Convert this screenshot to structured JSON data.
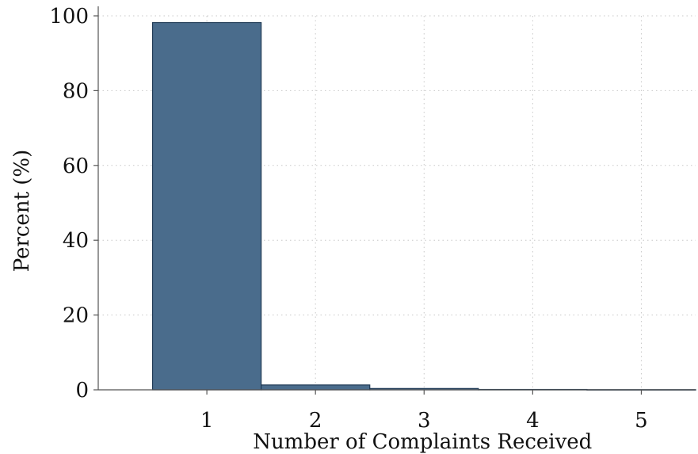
{
  "chart_data": {
    "type": "bar",
    "title": "",
    "xlabel": "Number of Complaints Received",
    "ylabel": "Percent (%)",
    "categories": [
      "1",
      "2",
      "3",
      "4",
      "5"
    ],
    "values": [
      98.2,
      1.3,
      0.35,
      0.1,
      0.05
    ],
    "ylim": [
      0,
      100
    ],
    "yticks": [
      0,
      20,
      40,
      60,
      80,
      100
    ],
    "xlim": [
      0.5,
      5.5
    ],
    "grid": true,
    "colors": {
      "bar_fill": "#4a6c8c",
      "bar_stroke": "#1f3a55"
    }
  }
}
